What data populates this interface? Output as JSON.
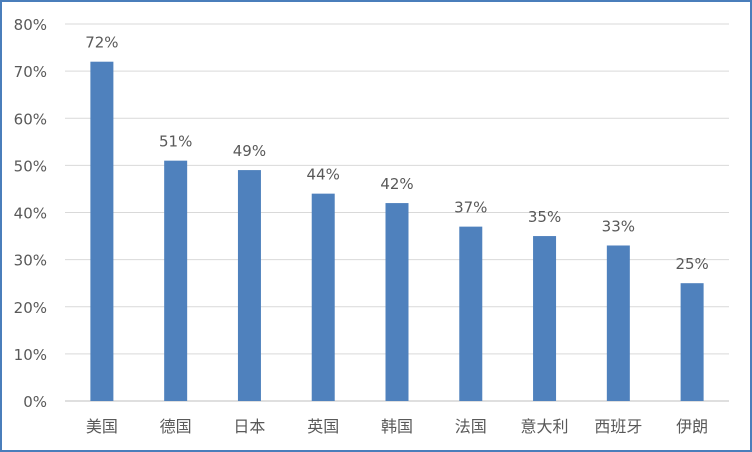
{
  "chart_data": {
    "type": "bar",
    "categories": [
      "美国",
      "德国",
      "日本",
      "英国",
      "韩国",
      "法国",
      "意大利",
      "西班牙",
      "伊朗"
    ],
    "values": [
      72,
      51,
      49,
      44,
      42,
      37,
      35,
      33,
      25
    ],
    "data_labels": [
      "72%",
      "51%",
      "49%",
      "44%",
      "42%",
      "37%",
      "35%",
      "33%",
      "25%"
    ],
    "yticks": [
      "0%",
      "10%",
      "20%",
      "30%",
      "40%",
      "50%",
      "60%",
      "70%",
      "80%"
    ],
    "ylim": [
      0,
      80
    ],
    "grid": true,
    "bar_color": "#4f81bd",
    "border_color": "#4a7ebb"
  }
}
